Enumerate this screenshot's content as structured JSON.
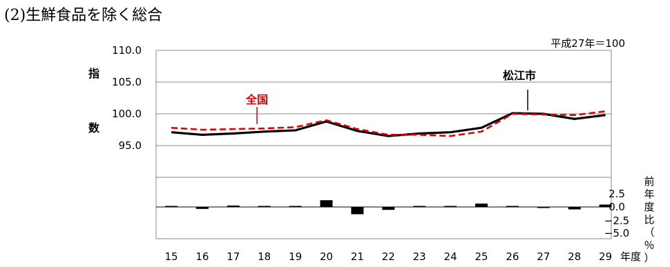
{
  "heading": "(2)生鮮食品を除く総合",
  "chart_data": {
    "type": "line",
    "note": "平成27年＝100",
    "x": [
      "15",
      "16",
      "17",
      "18",
      "19",
      "20",
      "21",
      "22",
      "23",
      "24",
      "25",
      "26",
      "27",
      "28",
      "29"
    ],
    "x_axis_unit": "年度",
    "upper_axis": {
      "label_top": "指",
      "label_bottom": "数",
      "ticks": [
        "110.0",
        "105.0",
        "100.0",
        "95.0"
      ],
      "ylim": [
        85.0,
        110.0
      ]
    },
    "lower_axis": {
      "label": "前年度比（％）",
      "ticks": [
        "2.5",
        "0.0",
        "−2.5",
        "−5.0"
      ],
      "ylim": [
        -5.0,
        2.5
      ]
    },
    "series": [
      {
        "name": "松江市",
        "style": "solid",
        "color": "#000000",
        "values": [
          97.1,
          96.7,
          96.9,
          97.2,
          97.4,
          98.8,
          97.3,
          96.5,
          96.9,
          97.1,
          97.8,
          100.1,
          100.0,
          99.2,
          99.8
        ]
      },
      {
        "name": "全国",
        "style": "dashed",
        "color": "#e00000",
        "values": [
          97.8,
          97.5,
          97.6,
          97.7,
          97.9,
          99.0,
          97.6,
          96.7,
          96.7,
          96.5,
          97.2,
          100.0,
          99.9,
          99.8,
          100.4
        ]
      }
    ],
    "bars": {
      "name": "前年度比",
      "values": [
        0.1,
        -0.4,
        0.3,
        0.2,
        0.1,
        1.4,
        -1.5,
        -0.6,
        0.2,
        0.1,
        0.7,
        0.0,
        -0.1,
        -0.5,
        0.5
      ]
    },
    "grid": true
  }
}
